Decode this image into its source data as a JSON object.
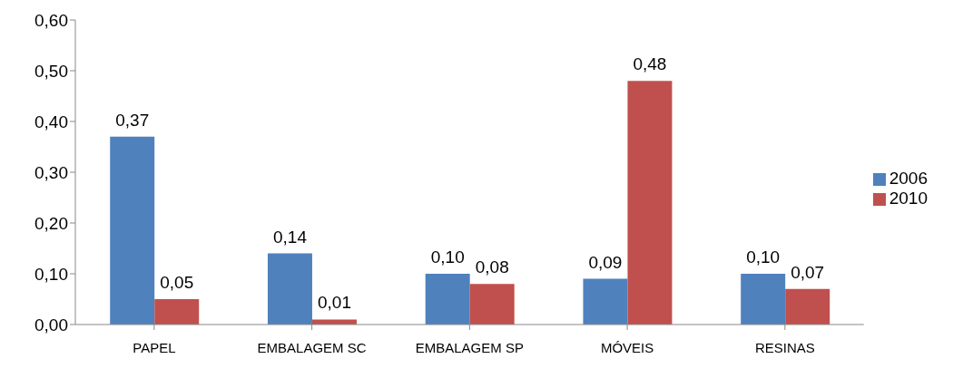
{
  "chart_data": {
    "type": "bar",
    "categories": [
      "PAPEL",
      "EMBALAGEM SC",
      "EMBALAGEM SP",
      "MÓVEIS",
      "RESINAS"
    ],
    "series": [
      {
        "name": "2006",
        "color": "#4f81bd",
        "values": [
          0.37,
          0.14,
          0.1,
          0.09,
          0.1
        ],
        "value_labels": [
          "0,37",
          "0,14",
          "0,10",
          "0,09",
          "0,10"
        ]
      },
      {
        "name": "2010",
        "color": "#c0504d",
        "values": [
          0.05,
          0.01,
          0.08,
          0.48,
          0.07
        ],
        "value_labels": [
          "0,05",
          "0,01",
          "0,08",
          "0,48",
          "0,07"
        ]
      }
    ],
    "ylim": [
      0,
      0.6
    ],
    "yticks": [
      {
        "value": 0,
        "label": "0,00"
      },
      {
        "value": 0.1,
        "label": "0,10"
      },
      {
        "value": 0.2,
        "label": "0,20"
      },
      {
        "value": 0.3,
        "label": "0,30"
      },
      {
        "value": 0.4,
        "label": "0,40"
      },
      {
        "value": 0.5,
        "label": "0,50"
      },
      {
        "value": 0.6,
        "label": "0,60"
      }
    ],
    "grid": false,
    "legend": "right"
  }
}
